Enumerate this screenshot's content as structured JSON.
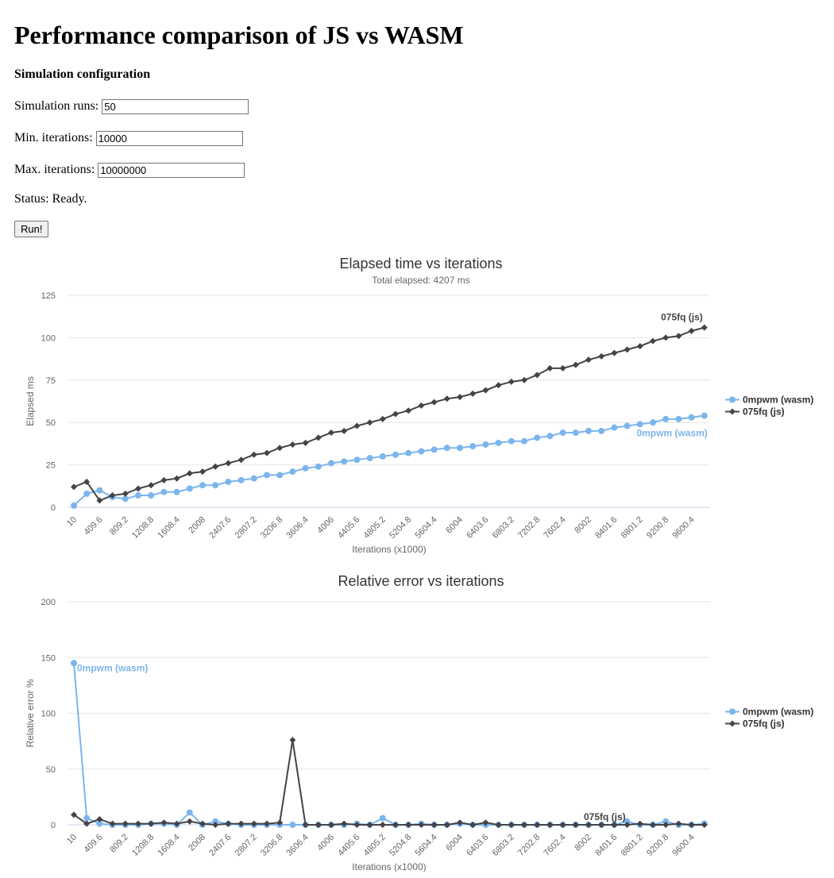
{
  "page": {
    "title": "Performance comparison of JS vs WASM",
    "config_heading": "Simulation configuration",
    "fields": {
      "runs": {
        "label": "Simulation runs:",
        "value": "50"
      },
      "min_iter": {
        "label": "Min. iterations:",
        "value": "10000"
      },
      "max_iter": {
        "label": "Max. iterations:",
        "value": "10000000"
      }
    },
    "status": {
      "label": "Status:",
      "value": "Ready."
    },
    "run_button": "Run!"
  },
  "chart_data": [
    {
      "type": "line",
      "title": "Elapsed time vs iterations",
      "subtitle": "Total elapsed: 4207 ms",
      "xlabel": "Iterations (x1000)",
      "ylabel": "Elapsed ms",
      "ylim": [
        0,
        125
      ],
      "yticks": [
        0,
        25,
        50,
        75,
        100,
        125
      ],
      "x_tick_labels": [
        "10",
        "409.6",
        "809.2",
        "1208.8",
        "1608.4",
        "2008",
        "2407.6",
        "2807.2",
        "3206.8",
        "3606.4",
        "4006",
        "4405.6",
        "4805.2",
        "5204.8",
        "5604.4",
        "6004",
        "6403.6",
        "6803.2",
        "7202.8",
        "7602.4",
        "8002",
        "8401.6",
        "8801.2",
        "9200.8",
        "9600.4"
      ],
      "grid": true,
      "legend": "right",
      "series": [
        {
          "name": "0mpwm (wasm)",
          "color": "#7cb5ec",
          "marker": "circle",
          "values": [
            1,
            8,
            10,
            6,
            5,
            7,
            7,
            9,
            9,
            11,
            13,
            13,
            15,
            16,
            17,
            19,
            19,
            21,
            23,
            24,
            26,
            27,
            28,
            29,
            30,
            31,
            32,
            33,
            34,
            35,
            35,
            36,
            37,
            38,
            39,
            39,
            41,
            42,
            44,
            44,
            45,
            45,
            47,
            48,
            49,
            50,
            52,
            52,
            53,
            54
          ]
        },
        {
          "name": "075fq (js)",
          "color": "#434348",
          "marker": "diamond",
          "values": [
            12,
            15,
            4,
            7,
            8,
            11,
            13,
            16,
            17,
            20,
            21,
            24,
            26,
            28,
            31,
            32,
            35,
            37,
            38,
            41,
            44,
            45,
            48,
            50,
            52,
            55,
            57,
            60,
            62,
            64,
            65,
            67,
            69,
            72,
            74,
            75,
            78,
            82,
            82,
            84,
            87,
            89,
            91,
            93,
            95,
            98,
            100,
            101,
            104,
            106
          ]
        }
      ]
    },
    {
      "type": "line",
      "title": "Relative error vs iterations",
      "xlabel": "Iterations (x1000)",
      "ylabel": "Relative error %",
      "ylim": [
        0,
        200
      ],
      "yticks": [
        0,
        50,
        100,
        150,
        200
      ],
      "x_tick_labels": [
        "10",
        "409.6",
        "809.2",
        "1208.8",
        "1608.4",
        "2008",
        "2407.6",
        "2807.2",
        "3206.8",
        "3606.4",
        "4006",
        "4405.6",
        "4805.2",
        "5204.8",
        "5604.4",
        "6004",
        "6403.6",
        "6803.2",
        "7202.8",
        "7602.4",
        "8002",
        "8401.6",
        "8801.2",
        "9200.8",
        "9600.4"
      ],
      "grid": true,
      "legend": "right",
      "series": [
        {
          "name": "0mpwm (wasm)",
          "color": "#7cb5ec",
          "marker": "circle",
          "values": [
            145,
            6,
            1,
            0,
            0,
            0,
            1,
            1,
            0,
            11,
            0,
            3,
            1,
            0,
            0,
            0,
            0,
            0,
            0,
            0,
            0,
            0,
            1,
            0,
            6,
            0,
            0,
            1,
            0,
            0,
            1,
            0,
            0,
            0,
            0,
            0,
            0,
            0,
            0,
            0,
            0,
            0,
            0,
            3,
            0,
            0,
            3,
            0,
            0,
            1
          ]
        },
        {
          "name": "075fq (js)",
          "color": "#434348",
          "marker": "diamond",
          "values": [
            9,
            1,
            5,
            1,
            1,
            1,
            1,
            2,
            1,
            3,
            1,
            0,
            1,
            1,
            1,
            1,
            2,
            76,
            0,
            0,
            0,
            1,
            0,
            0,
            0,
            0,
            0,
            0,
            0,
            0,
            2,
            0,
            2,
            0,
            0,
            0,
            0,
            0,
            0,
            0,
            0,
            0,
            0,
            0,
            1,
            0,
            0,
            1,
            0,
            0
          ]
        }
      ]
    }
  ]
}
